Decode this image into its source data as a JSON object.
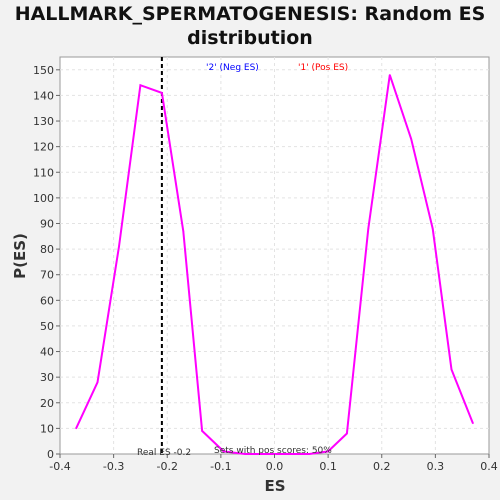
{
  "chart_data": {
    "type": "line",
    "title": "HALLMARK_SPERMATOGENESIS: Random ES distribution",
    "xlabel": "ES",
    "ylabel": "P(ES)",
    "xlim": [
      -0.4,
      0.4
    ],
    "ylim": [
      0,
      155
    ],
    "xticks": [
      -0.4,
      -0.3,
      -0.2,
      -0.1,
      0.0,
      0.1,
      0.2,
      0.3,
      0.4
    ],
    "xtick_labels": [
      "-0.4",
      "-0.3",
      "-0.2",
      "-0.1",
      "0.0",
      "0.1",
      "0.2",
      "0.3",
      "0.4"
    ],
    "yticks": [
      0,
      10,
      20,
      30,
      40,
      50,
      60,
      70,
      80,
      90,
      100,
      110,
      120,
      130,
      140,
      150
    ],
    "ytick_labels": [
      "0",
      "10",
      "20",
      "30",
      "40",
      "50",
      "60",
      "70",
      "80",
      "90",
      "100",
      "110",
      "120",
      "130",
      "140",
      "150"
    ],
    "grid": true,
    "series": [
      {
        "color": "#ff00ff",
        "x": [
          -0.37,
          -0.33,
          -0.29,
          -0.25,
          -0.21,
          -0.17,
          -0.135,
          -0.095,
          -0.055,
          -0.015,
          0.025,
          0.065,
          0.1,
          0.135,
          0.175,
          0.215,
          0.255,
          0.295,
          0.33,
          0.37
        ],
        "y": [
          10,
          28,
          81,
          144,
          141,
          87,
          9,
          1,
          0,
          0,
          0,
          0,
          1,
          8,
          88,
          148,
          123,
          88,
          33,
          12
        ]
      }
    ],
    "legend": {
      "placement": "top",
      "items": [
        {
          "label": "'2' (Neg ES)",
          "color": "#0000ff"
        },
        {
          "label": "'1' (Pos ES)",
          "color": "#ff0000"
        }
      ]
    },
    "reference_line": {
      "x": -0.21,
      "style": "dashed",
      "color": "#000000",
      "label": "Real ES -0.2"
    },
    "annotation": "Sets with pos scores: 50%"
  }
}
